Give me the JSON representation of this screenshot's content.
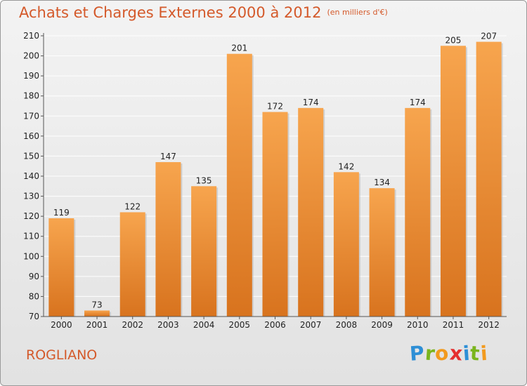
{
  "title": "Achats et Charges Externes 2000 à 2012",
  "subtitle": "(en milliers d'€)",
  "town": "ROGLIANO",
  "logo": {
    "letters": [
      "P",
      "r",
      "o",
      "x",
      "i",
      "t",
      "i"
    ],
    "colors": [
      "#2e8fd6",
      "#7ab51d",
      "#f29a1e",
      "#e52e2e",
      "#2e8fd6",
      "#7ab51d",
      "#f29a1e"
    ]
  },
  "colors": {
    "bar_light": "#f7a54e",
    "bar_dark": "#d8731e",
    "accent": "#d4592a",
    "grid": "#ffffff",
    "axis_text": "#222222"
  },
  "chart_data": {
    "type": "bar",
    "categories": [
      "2000",
      "2001",
      "2002",
      "2003",
      "2004",
      "2005",
      "2006",
      "2007",
      "2008",
      "2009",
      "2010",
      "2011",
      "2012"
    ],
    "values": [
      119,
      73,
      122,
      147,
      135,
      201,
      172,
      174,
      142,
      134,
      174,
      205,
      207
    ],
    "data_labels": [
      "119",
      "73",
      "122",
      "147",
      "135",
      "201",
      "172",
      "174",
      "142",
      "134",
      "174",
      "205",
      "207"
    ],
    "yticks": [
      70,
      80,
      90,
      100,
      110,
      120,
      130,
      140,
      150,
      160,
      170,
      180,
      190,
      200,
      210
    ],
    "ylim": [
      70,
      210
    ],
    "grid": true,
    "title": "Achats et Charges Externes 2000 à 2012",
    "xlabel": "",
    "ylabel": ""
  }
}
